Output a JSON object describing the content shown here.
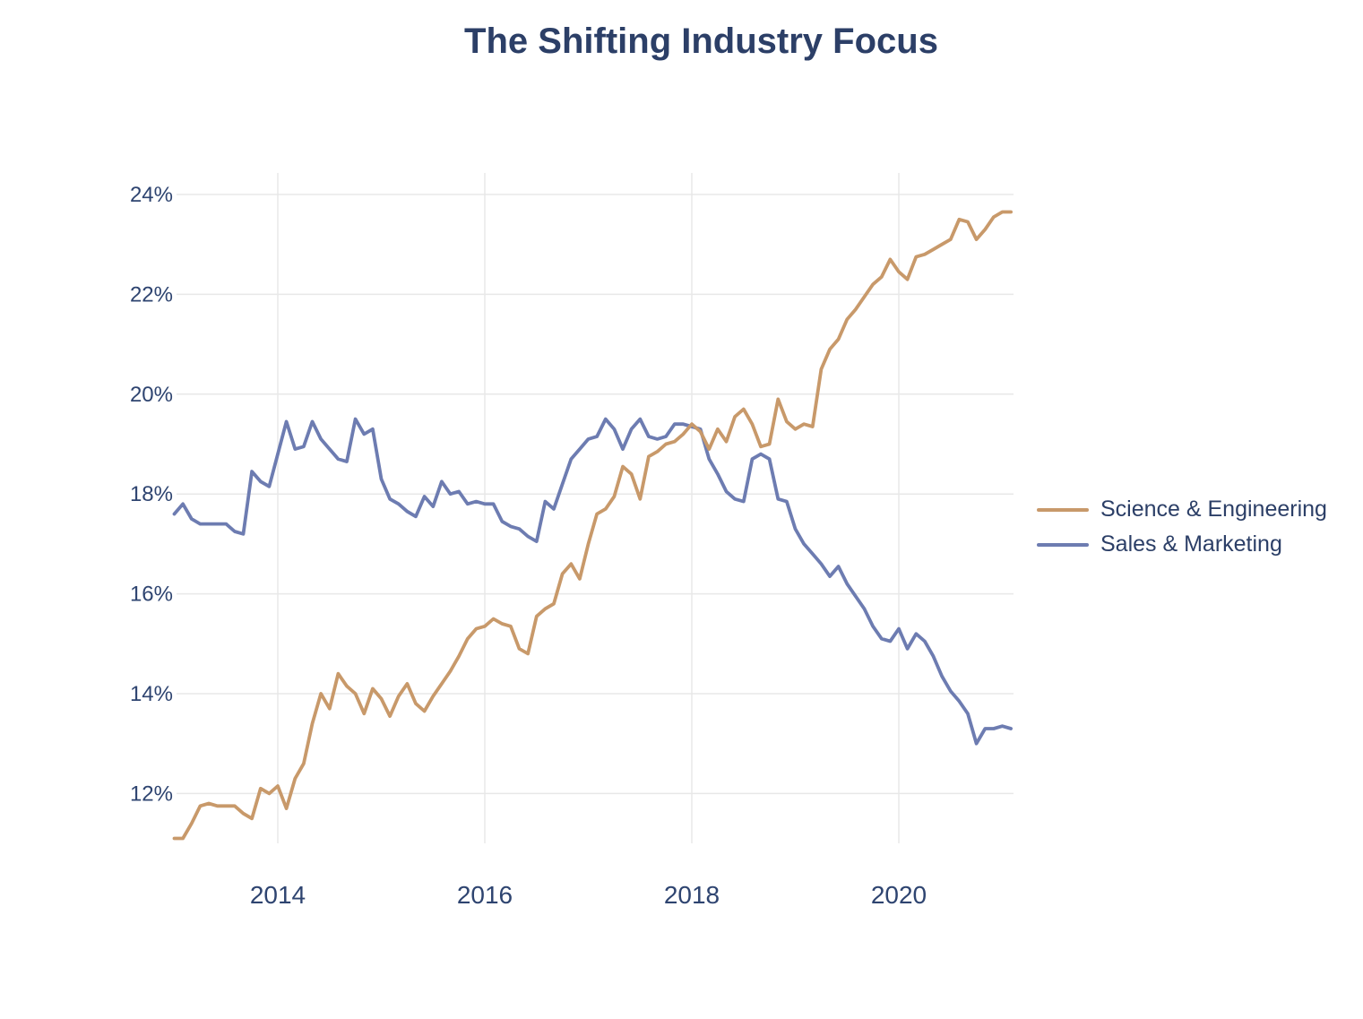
{
  "title": "The Shifting Industry Focus",
  "colors": {
    "background": "#ffffff",
    "title_text": "#2c3f67",
    "tick_text": "#2e4470",
    "grid": "#e8e8e8",
    "science_engineering": "#c8996a",
    "sales_marketing": "#6d7cb1"
  },
  "legend": {
    "items": [
      {
        "label": "Science & Engineering",
        "color": "#c8996a"
      },
      {
        "label": "Sales & Marketing",
        "color": "#6d7cb1"
      }
    ]
  },
  "chart_data": {
    "type": "line",
    "title": "The Shifting Industry Focus",
    "x_start": "2013-01",
    "x_end": "2021-02",
    "interval": "monthly",
    "xlabel": "",
    "ylabel": "",
    "unit": "%",
    "grid": true,
    "legend_position": "right",
    "x_axis": {
      "base_year": 2013,
      "tick_years": [
        2014,
        2016,
        2018,
        2020
      ]
    },
    "y_axis": {
      "tick_values": [
        12,
        14,
        16,
        18,
        20,
        22,
        24
      ],
      "tick_labels": [
        "12%",
        "14%",
        "16%",
        "18%",
        "20%",
        "22%",
        "24%"
      ],
      "ylim": [
        11,
        24.5
      ]
    },
    "series": [
      {
        "name": "Science & Engineering",
        "color": "#c8996a",
        "values": [
          11.1,
          11.1,
          11.4,
          11.75,
          11.8,
          11.75,
          11.75,
          11.75,
          11.6,
          11.5,
          12.1,
          12.0,
          12.15,
          11.7,
          12.3,
          12.6,
          13.4,
          14.0,
          13.7,
          14.4,
          14.15,
          14.0,
          13.6,
          14.1,
          13.9,
          13.55,
          13.95,
          14.2,
          13.8,
          13.65,
          13.95,
          14.2,
          14.45,
          14.75,
          15.1,
          15.3,
          15.35,
          15.5,
          15.4,
          15.35,
          14.9,
          14.8,
          15.55,
          15.7,
          15.8,
          16.4,
          16.6,
          16.3,
          17.0,
          17.6,
          17.7,
          17.95,
          18.55,
          18.4,
          17.9,
          18.75,
          18.85,
          19.0,
          19.05,
          19.2,
          19.4,
          19.25,
          18.9,
          19.3,
          19.05,
          19.55,
          19.7,
          19.4,
          18.95,
          19.0,
          19.9,
          19.45,
          19.3,
          19.4,
          19.35,
          20.5,
          20.9,
          21.1,
          21.5,
          21.7,
          21.95,
          22.2,
          22.35,
          22.7,
          22.45,
          22.3,
          22.75,
          22.8,
          22.9,
          23.0,
          23.1,
          23.5,
          23.45,
          23.1,
          23.3,
          23.55,
          23.65,
          23.65
        ]
      },
      {
        "name": "Sales & Marketing",
        "color": "#6d7cb1",
        "values": [
          17.6,
          17.8,
          17.5,
          17.4,
          17.4,
          17.4,
          17.4,
          17.25,
          17.2,
          18.45,
          18.25,
          18.15,
          18.8,
          19.45,
          18.9,
          18.95,
          19.45,
          19.1,
          18.9,
          18.7,
          18.65,
          19.5,
          19.2,
          19.3,
          18.3,
          17.9,
          17.8,
          17.65,
          17.55,
          17.95,
          17.75,
          18.25,
          18.0,
          18.05,
          17.8,
          17.85,
          17.8,
          17.8,
          17.45,
          17.35,
          17.3,
          17.15,
          17.05,
          17.85,
          17.7,
          18.2,
          18.7,
          18.9,
          19.1,
          19.15,
          19.5,
          19.3,
          18.9,
          19.3,
          19.5,
          19.15,
          19.1,
          19.15,
          19.4,
          19.4,
          19.35,
          19.3,
          18.7,
          18.4,
          18.05,
          17.9,
          17.85,
          18.7,
          18.8,
          18.7,
          17.9,
          17.85,
          17.3,
          17.0,
          16.8,
          16.6,
          16.35,
          16.55,
          16.2,
          15.95,
          15.7,
          15.35,
          15.1,
          15.05,
          15.3,
          14.9,
          15.2,
          15.05,
          14.75,
          14.35,
          14.05,
          13.85,
          13.6,
          13.0,
          13.3,
          13.3,
          13.35,
          13.3
        ]
      }
    ]
  }
}
